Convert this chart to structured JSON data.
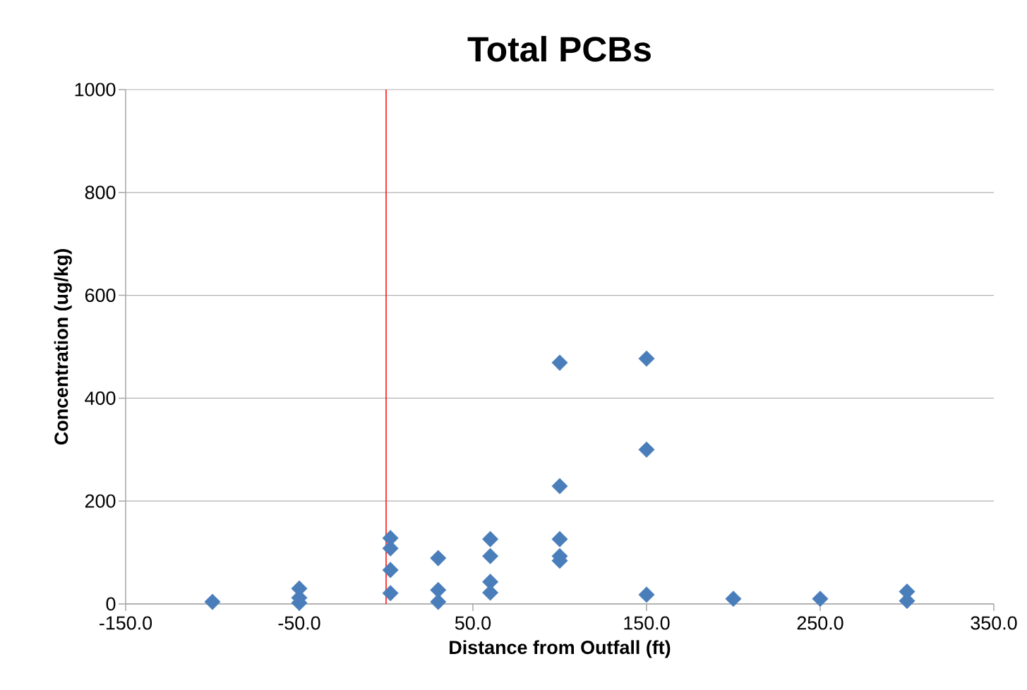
{
  "chart_data": {
    "type": "scatter",
    "title": "Total PCBs",
    "xlabel": "Distance from Outfall (ft)",
    "ylabel": "Concentration (ug/kg)",
    "series": [
      {
        "color": "#4a7ebb",
        "x": [
          -100,
          -50,
          -50,
          -50,
          2.5,
          2.5,
          2.5,
          2.5,
          30,
          30,
          30,
          60,
          60,
          60,
          60,
          100,
          100,
          100,
          100,
          100,
          150,
          150,
          150,
          200,
          250,
          300,
          300
        ],
        "values": [
          4,
          30,
          12,
          2,
          128,
          108,
          66,
          21,
          89,
          27,
          4,
          126,
          93,
          43,
          22,
          469,
          229,
          126,
          93,
          84,
          477,
          300,
          18,
          10,
          10,
          24,
          6
        ]
      }
    ],
    "xlim": [
      -150,
      350
    ],
    "ylim": [
      0,
      1000
    ],
    "xticks": [
      {
        "value": -150,
        "label": "-150.0"
      },
      {
        "value": -50,
        "label": "-50.0"
      },
      {
        "value": 50,
        "label": "50.0"
      },
      {
        "value": 150,
        "label": "150.0"
      },
      {
        "value": 250,
        "label": "250.0"
      },
      {
        "value": 350,
        "label": "350.0"
      }
    ],
    "yticks": [
      0,
      200,
      400,
      600,
      800,
      1000
    ],
    "ref_lines": [
      {
        "axis": "x",
        "value": 0,
        "color": "#ff0000"
      }
    ],
    "grid": "y",
    "marker": "diamond"
  }
}
